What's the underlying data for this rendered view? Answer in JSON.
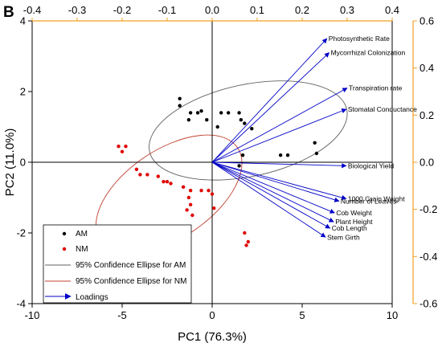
{
  "chart_data": {
    "type": "scatter",
    "panel_label": "B",
    "xlabel": "PC1 (76.3%)",
    "ylabel": "PC2 (11.0%)",
    "xlim": [
      -10,
      10
    ],
    "ylim": [
      -4,
      4
    ],
    "x_ticks": [
      "-10",
      "-5",
      "0",
      "5",
      "10"
    ],
    "y_ticks": [
      "-4",
      "-2",
      "0",
      "2",
      "4"
    ],
    "top_axis": {
      "lim": [
        -0.4,
        0.4
      ],
      "ticks": [
        "-0.4",
        "-0.3",
        "-0.2",
        "-0.1",
        "0.0",
        "0.1",
        "0.2",
        "0.3",
        "0.4"
      ]
    },
    "right_axis": {
      "lim": [
        -0.6,
        0.6
      ],
      "ticks": [
        "-0.6",
        "-0.4",
        "-0.2",
        "0.0",
        "0.2",
        "0.4",
        "0.6"
      ]
    },
    "series": [
      {
        "name": "AM",
        "color": "#000000",
        "points": [
          [
            -1.8,
            1.8
          ],
          [
            -1.8,
            1.6
          ],
          [
            -1.2,
            1.4
          ],
          [
            -0.8,
            1.4
          ],
          [
            -0.6,
            1.45
          ],
          [
            -1.3,
            1.2
          ],
          [
            -0.3,
            1.2
          ],
          [
            0.5,
            1.4
          ],
          [
            0.9,
            1.4
          ],
          [
            1.5,
            1.4
          ],
          [
            0.3,
            1.0
          ],
          [
            1.6,
            1.2
          ],
          [
            1.8,
            1.1
          ],
          [
            2.2,
            0.95
          ],
          [
            1.7,
            0.2
          ],
          [
            1.5,
            -0.1
          ],
          [
            3.8,
            0.2
          ],
          [
            4.2,
            0.2
          ],
          [
            5.7,
            0.55
          ],
          [
            5.8,
            0.25
          ]
        ]
      },
      {
        "name": "NM",
        "color": "#e00000",
        "points": [
          [
            -5.2,
            0.45
          ],
          [
            -4.8,
            0.45
          ],
          [
            -5.0,
            0.3
          ],
          [
            -4.2,
            -0.2
          ],
          [
            -4.0,
            -0.35
          ],
          [
            -3.6,
            -0.35
          ],
          [
            -3.0,
            -0.4
          ],
          [
            -2.7,
            -0.55
          ],
          [
            -2.5,
            -0.55
          ],
          [
            -2.3,
            -0.6
          ],
          [
            -1.6,
            -0.7
          ],
          [
            -1.2,
            -0.8
          ],
          [
            -1.3,
            -1.0
          ],
          [
            -1.2,
            -1.2
          ],
          [
            -0.6,
            -0.8
          ],
          [
            -0.2,
            -0.8
          ],
          [
            0.0,
            -0.9
          ],
          [
            -1.4,
            -1.35
          ],
          [
            -1.1,
            -1.5
          ],
          [
            0.1,
            -1.3
          ],
          [
            1.8,
            -2.0
          ],
          [
            2.0,
            -2.25
          ],
          [
            1.9,
            -2.35
          ]
        ]
      }
    ],
    "ellipses": [
      {
        "name": "95% Confidence Ellipse for AM",
        "color": "#606060",
        "center": [
          2.0,
          0.9
        ],
        "radii": [
          5.6,
          1.3
        ],
        "angle_deg": -12
      },
      {
        "name": "95% Confidence Ellipse for NM",
        "color": "#c04030",
        "center": [
          -2.4,
          -0.9
        ],
        "radii": [
          4.6,
          1.25
        ],
        "angle_deg": -34
      }
    ],
    "loadings": {
      "name": "Loadings",
      "color": "#0000c8",
      "vectors": [
        {
          "label": "Photosynthetic Rate",
          "x": 0.255,
          "y": 0.525
        },
        {
          "label": "Mycorrhizal Colonization",
          "x": 0.26,
          "y": 0.465
        },
        {
          "label": "Transpiration rate",
          "x": 0.3,
          "y": 0.315
        },
        {
          "label": "Stomatal Conductance",
          "x": 0.298,
          "y": 0.225
        },
        {
          "label": "Biological Yield",
          "x": 0.298,
          "y": -0.015
        },
        {
          "label": "1000 Grain Weight",
          "x": 0.298,
          "y": -0.155
        },
        {
          "label": "Number of Leaves",
          "x": 0.282,
          "y": -0.165
        },
        {
          "label": "Cob Weight",
          "x": 0.272,
          "y": -0.215
        },
        {
          "label": "Plant Height",
          "x": 0.27,
          "y": -0.253
        },
        {
          "label": "Cob Length",
          "x": 0.262,
          "y": -0.28
        },
        {
          "label": "Stem Girth",
          "x": 0.252,
          "y": -0.318
        }
      ]
    },
    "legend": {
      "position": "bottom-left",
      "entries": [
        "AM",
        "NM",
        "95% Confidence Ellipse for AM",
        "95% Confidence Ellipse for NM",
        "Loadings"
      ]
    },
    "colors": {
      "primary_axes": "#000000",
      "secondary_axes": "#f0a020"
    }
  }
}
